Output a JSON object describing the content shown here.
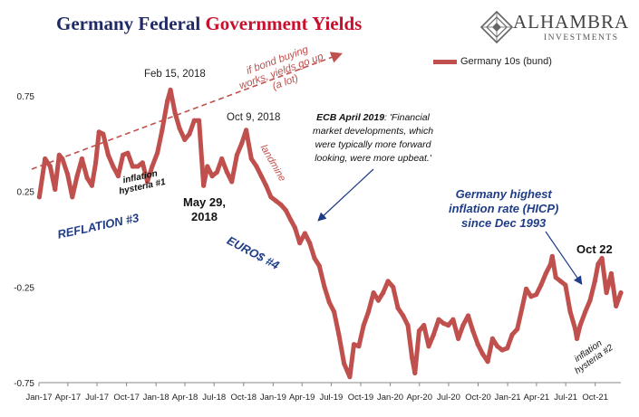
{
  "title": {
    "part1": "Germany Federal ",
    "part2": "Government Yields"
  },
  "brand": {
    "name": "ALHAMBRA",
    "subtitle": "INVESTMENTS",
    "logo_icon": "alhambra-diamond-logo-icon"
  },
  "colors": {
    "series": "#c0504d",
    "title_blue": "#1f2a66",
    "title_red": "#c8102e",
    "annotation_red": "#c0504d",
    "annotation_blue": "#1f3c88"
  },
  "chart_data": {
    "type": "line",
    "title": "Germany Federal Government Yields",
    "xlabel": "",
    "ylabel": "",
    "ylim": [
      -0.75,
      1.25
    ],
    "yticks": [
      -0.75,
      -0.25,
      0.25,
      0.75
    ],
    "ytick_labels": [
      "-0.75",
      "-0.25",
      "0.25",
      "0.75"
    ],
    "xticks": [
      "Jan-17",
      "Apr-17",
      "Jul-17",
      "Oct-17",
      "Jan-18",
      "Apr-18",
      "Jul-18",
      "Oct-18",
      "Jan-19",
      "Apr-19",
      "Jul-19",
      "Oct-19",
      "Jan-20",
      "Apr-20",
      "Jul-20",
      "Oct-20",
      "Jan-21",
      "Apr-21",
      "Jul-21",
      "Oct-21"
    ],
    "xtick_dates": [
      "2017-01-01",
      "2017-04-01",
      "2017-07-01",
      "2017-10-01",
      "2018-01-01",
      "2018-04-01",
      "2018-07-01",
      "2018-10-01",
      "2019-01-01",
      "2019-04-01",
      "2019-07-01",
      "2019-10-01",
      "2020-01-01",
      "2020-04-01",
      "2020-07-01",
      "2020-10-01",
      "2021-01-01",
      "2021-04-01",
      "2021-07-01",
      "2021-10-01"
    ],
    "xrange": [
      "2017-01-01",
      "2021-12-20"
    ],
    "legend": "top-right",
    "grid": false,
    "series": [
      {
        "name": "Germany 10s (bund)",
        "x": [
          "2017-01-02",
          "2017-01-20",
          "2017-02-05",
          "2017-02-20",
          "2017-03-05",
          "2017-03-15",
          "2017-03-31",
          "2017-04-15",
          "2017-04-30",
          "2017-05-15",
          "2017-05-31",
          "2017-06-15",
          "2017-06-27",
          "2017-07-07",
          "2017-07-20",
          "2017-08-05",
          "2017-08-20",
          "2017-09-05",
          "2017-09-20",
          "2017-10-05",
          "2017-10-20",
          "2017-11-05",
          "2017-11-20",
          "2017-12-05",
          "2017-12-20",
          "2018-01-05",
          "2018-01-20",
          "2018-02-05",
          "2018-02-15",
          "2018-03-01",
          "2018-03-15",
          "2018-03-31",
          "2018-04-15",
          "2018-04-30",
          "2018-05-15",
          "2018-05-29",
          "2018-06-10",
          "2018-06-25",
          "2018-07-10",
          "2018-07-25",
          "2018-08-10",
          "2018-08-25",
          "2018-09-10",
          "2018-09-25",
          "2018-10-09",
          "2018-10-25",
          "2018-11-10",
          "2018-11-25",
          "2018-12-10",
          "2018-12-25",
          "2019-01-10",
          "2019-01-25",
          "2019-02-10",
          "2019-02-25",
          "2019-03-10",
          "2019-03-25",
          "2019-04-10",
          "2019-04-25",
          "2019-05-10",
          "2019-05-25",
          "2019-06-10",
          "2019-06-25",
          "2019-07-10",
          "2019-07-25",
          "2019-08-10",
          "2019-08-28",
          "2019-09-10",
          "2019-09-25",
          "2019-10-10",
          "2019-10-25",
          "2019-11-10",
          "2019-11-25",
          "2019-12-10",
          "2019-12-25",
          "2020-01-10",
          "2020-01-25",
          "2020-02-10",
          "2020-02-25",
          "2020-03-09",
          "2020-03-18",
          "2020-03-31",
          "2020-04-15",
          "2020-04-30",
          "2020-05-15",
          "2020-05-31",
          "2020-06-15",
          "2020-06-30",
          "2020-07-15",
          "2020-07-31",
          "2020-08-15",
          "2020-08-31",
          "2020-09-15",
          "2020-09-30",
          "2020-10-15",
          "2020-10-31",
          "2020-11-15",
          "2020-11-30",
          "2020-12-15",
          "2020-12-31",
          "2021-01-15",
          "2021-01-31",
          "2021-02-15",
          "2021-02-28",
          "2021-03-15",
          "2021-03-31",
          "2021-04-15",
          "2021-04-30",
          "2021-05-15",
          "2021-05-20",
          "2021-05-31",
          "2021-06-15",
          "2021-06-30",
          "2021-07-15",
          "2021-07-31",
          "2021-08-05",
          "2021-08-15",
          "2021-08-31",
          "2021-09-15",
          "2021-09-30",
          "2021-10-10",
          "2021-10-22",
          "2021-11-05",
          "2021-11-20",
          "2021-12-05",
          "2021-12-20"
        ],
        "y": [
          0.22,
          0.42,
          0.38,
          0.26,
          0.44,
          0.42,
          0.34,
          0.22,
          0.33,
          0.42,
          0.32,
          0.28,
          0.4,
          0.56,
          0.55,
          0.44,
          0.38,
          0.33,
          0.44,
          0.45,
          0.38,
          0.38,
          0.4,
          0.3,
          0.38,
          0.45,
          0.57,
          0.72,
          0.78,
          0.66,
          0.58,
          0.52,
          0.55,
          0.62,
          0.62,
          0.28,
          0.38,
          0.33,
          0.35,
          0.42,
          0.35,
          0.3,
          0.44,
          0.5,
          0.57,
          0.42,
          0.38,
          0.33,
          0.28,
          0.22,
          0.2,
          0.18,
          0.15,
          0.1,
          0.06,
          -0.02,
          0.03,
          -0.02,
          -0.1,
          -0.14,
          -0.25,
          -0.33,
          -0.38,
          -0.5,
          -0.65,
          -0.72,
          -0.55,
          -0.56,
          -0.45,
          -0.38,
          -0.28,
          -0.32,
          -0.28,
          -0.22,
          -0.25,
          -0.36,
          -0.4,
          -0.45,
          -0.62,
          -0.7,
          -0.48,
          -0.45,
          -0.56,
          -0.5,
          -0.42,
          -0.44,
          -0.45,
          -0.42,
          -0.52,
          -0.45,
          -0.4,
          -0.48,
          -0.55,
          -0.6,
          -0.64,
          -0.52,
          -0.56,
          -0.58,
          -0.57,
          -0.5,
          -0.47,
          -0.36,
          -0.26,
          -0.3,
          -0.29,
          -0.24,
          -0.18,
          -0.13,
          -0.09,
          -0.2,
          -0.22,
          -0.24,
          -0.38,
          -0.47,
          -0.52,
          -0.45,
          -0.38,
          -0.32,
          -0.22,
          -0.13,
          -0.1,
          -0.28,
          -0.18,
          -0.35,
          -0.28
        ]
      }
    ]
  },
  "annotations": {
    "feb15": "Feb 15, 2018",
    "oct9": "Oct 9, 2018",
    "may29_line1": "May 29,",
    "may29_line2": "2018",
    "hysteria1_line1": "inflation",
    "hysteria1_line2": "hysteria #1",
    "reflation3": "REFLATION #3",
    "euros4": "EURO$ #4",
    "landmine": "landmine",
    "bondbuy_line1": "if bond buying",
    "bondbuy_line2": "works, yields go up",
    "bondbuy_line3": "(a lot)",
    "ecb_label": "ECB April 2019",
    "ecb_line1": ": 'Financial",
    "ecb_line2": "market developments, which",
    "ecb_line3": "were typically more forward",
    "ecb_line4": "looking, were more upbeat.'",
    "germany_line1": "Germany highest",
    "germany_line2": "inflation rate (HICP)",
    "germany_line3": "since Dec 1993",
    "oct22": "Oct 22",
    "hysteria2_line1": "inflation",
    "hysteria2_line2": "hysteria #2"
  }
}
